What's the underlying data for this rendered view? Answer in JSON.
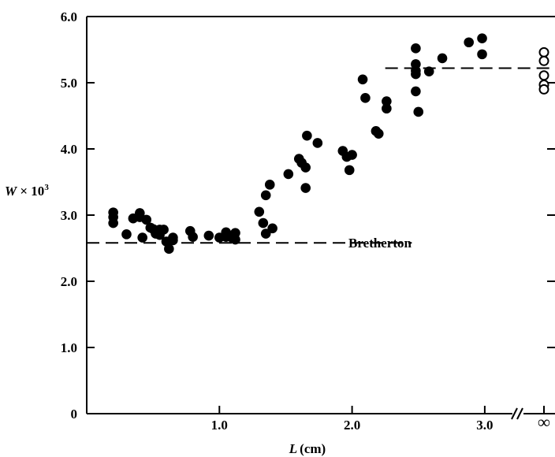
{
  "chart_data": {
    "type": "scatter",
    "title": "",
    "xlabel_var": "L",
    "xlabel_unit": "(cm)",
    "ylabel_var": "W",
    "ylabel_rest": " × 10",
    "ylabel_sup": "3",
    "xlim": [
      0,
      3.0
    ],
    "ylim": [
      0,
      6.0
    ],
    "x_ticks": [
      {
        "value": 1.0,
        "label": "1.0"
      },
      {
        "value": 2.0,
        "label": "2.0"
      },
      {
        "value": 3.0,
        "label": "3.0"
      }
    ],
    "y_ticks": [
      {
        "value": 0,
        "label": "0"
      },
      {
        "value": 1.0,
        "label": "1.0"
      },
      {
        "value": 2.0,
        "label": "2.0"
      },
      {
        "value": 3.0,
        "label": "3.0"
      },
      {
        "value": 4.0,
        "label": "4.0"
      },
      {
        "value": 5.0,
        "label": "5.0"
      },
      {
        "value": 6.0,
        "label": "6.0"
      }
    ],
    "infinity_label": "∞",
    "axis_break": true,
    "grid": false,
    "series": [
      {
        "marker": "filled-circle",
        "points": [
          [
            0.2,
            3.04
          ],
          [
            0.2,
            2.97
          ],
          [
            0.2,
            2.88
          ],
          [
            0.3,
            2.71
          ],
          [
            0.35,
            2.95
          ],
          [
            0.4,
            3.03
          ],
          [
            0.4,
            2.97
          ],
          [
            0.42,
            2.66
          ],
          [
            0.45,
            2.93
          ],
          [
            0.48,
            2.81
          ],
          [
            0.5,
            2.79
          ],
          [
            0.52,
            2.72
          ],
          [
            0.55,
            2.78
          ],
          [
            0.55,
            2.7
          ],
          [
            0.58,
            2.78
          ],
          [
            0.6,
            2.6
          ],
          [
            0.62,
            2.49
          ],
          [
            0.65,
            2.66
          ],
          [
            0.65,
            2.62
          ],
          [
            0.78,
            2.76
          ],
          [
            0.8,
            2.67
          ],
          [
            0.92,
            2.69
          ],
          [
            1.0,
            2.66
          ],
          [
            1.05,
            2.74
          ],
          [
            1.05,
            2.67
          ],
          [
            1.1,
            2.65
          ],
          [
            1.12,
            2.73
          ],
          [
            1.12,
            2.63
          ],
          [
            1.3,
            3.05
          ],
          [
            1.33,
            2.88
          ],
          [
            1.35,
            3.3
          ],
          [
            1.35,
            2.72
          ],
          [
            1.38,
            3.46
          ],
          [
            1.4,
            2.8
          ],
          [
            1.52,
            3.62
          ],
          [
            1.6,
            3.85
          ],
          [
            1.62,
            3.79
          ],
          [
            1.65,
            3.72
          ],
          [
            1.65,
            3.41
          ],
          [
            1.66,
            4.2
          ],
          [
            1.74,
            4.09
          ],
          [
            1.93,
            3.97
          ],
          [
            1.96,
            3.88
          ],
          [
            1.98,
            3.68
          ],
          [
            2.0,
            3.91
          ],
          [
            2.08,
            5.05
          ],
          [
            2.1,
            4.77
          ],
          [
            2.18,
            4.27
          ],
          [
            2.2,
            4.23
          ],
          [
            2.26,
            4.72
          ],
          [
            2.26,
            4.61
          ],
          [
            2.48,
            5.52
          ],
          [
            2.48,
            5.28
          ],
          [
            2.48,
            5.18
          ],
          [
            2.48,
            5.13
          ],
          [
            2.48,
            4.87
          ],
          [
            2.5,
            4.56
          ],
          [
            2.58,
            5.17
          ],
          [
            2.68,
            5.37
          ],
          [
            2.88,
            5.61
          ],
          [
            2.98,
            5.67
          ],
          [
            2.98,
            5.43
          ]
        ]
      },
      {
        "marker": "open-circle",
        "at_infinity": true,
        "values": [
          5.46,
          5.33,
          5.11,
          4.97,
          4.9
        ]
      }
    ],
    "reference_lines": [
      {
        "label": "Bretherton",
        "y": 2.58,
        "x_range": [
          0,
          2.45
        ],
        "style": "dashed"
      },
      {
        "label": "",
        "y": 5.22,
        "x_range": [
          2.25,
          3.5
        ],
        "style": "dashed"
      }
    ],
    "annotations": [
      {
        "text": "Bretherton",
        "x": 2.48,
        "y": 2.58
      }
    ]
  }
}
